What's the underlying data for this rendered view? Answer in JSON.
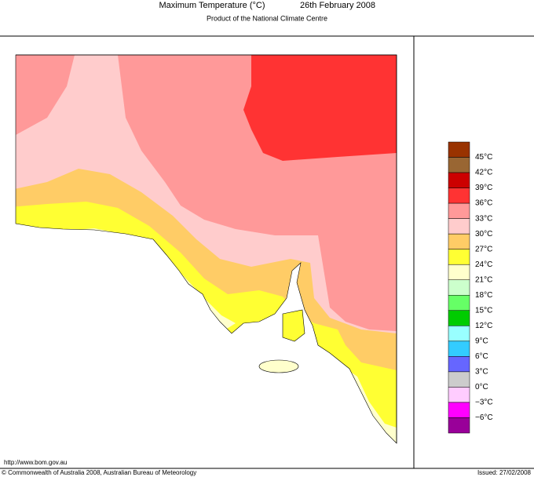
{
  "header": {
    "title": "Maximum Temperature (°C)",
    "date": "26th February 2008",
    "subtitle": "Product of the National Climate Centre"
  },
  "legend": {
    "colors": [
      "#993300",
      "#996633",
      "#cc0000",
      "#ff3333",
      "#ff9999",
      "#ffcccc",
      "#ffcc66",
      "#ffff33",
      "#ffffcc",
      "#ccffcc",
      "#66ff66",
      "#00cc00",
      "#99ffff",
      "#33ccff",
      "#6666ff",
      "#cccccc",
      "#ffccff",
      "#ff00ff",
      "#990099"
    ],
    "labels": [
      "45°C",
      "42°C",
      "39°C",
      "36°C",
      "33°C",
      "30°C",
      "27°C",
      "24°C",
      "21°C",
      "18°C",
      "15°C",
      "12°C",
      "9°C",
      "6°C",
      "3°C",
      "0°C",
      "−3°C",
      "−6°C"
    ]
  },
  "footer": {
    "url": "http://www.bom.gov.au",
    "copyright": "© Commonwealth of Australia 2008, Australian Bureau of Meteorology",
    "issued": "Issued: 27/02/2008"
  }
}
